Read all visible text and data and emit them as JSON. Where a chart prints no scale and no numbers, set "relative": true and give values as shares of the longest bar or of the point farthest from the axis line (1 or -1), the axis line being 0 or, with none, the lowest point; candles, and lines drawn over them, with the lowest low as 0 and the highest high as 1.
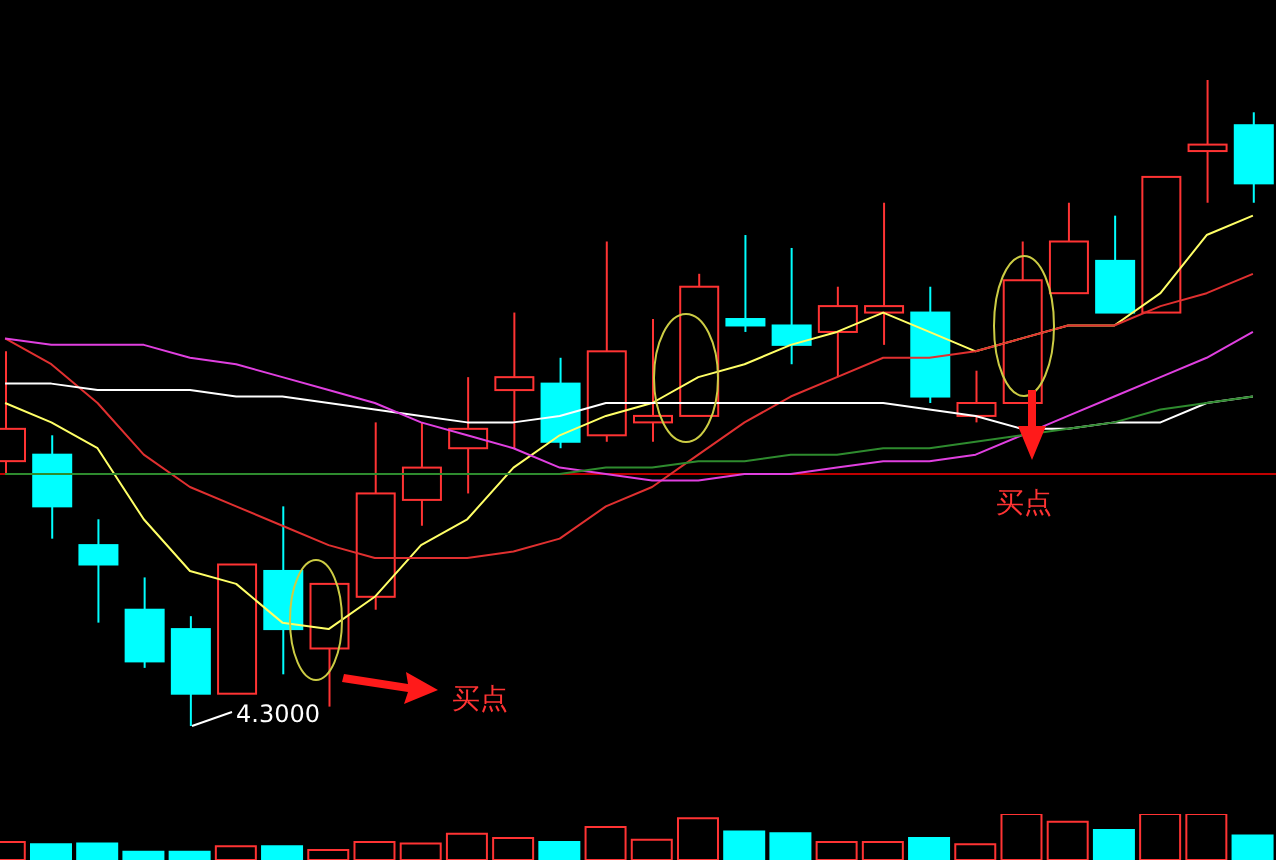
{
  "chart_data": [
    {
      "type": "candlestick",
      "relative": true,
      "categories": [
        null,
        null,
        null,
        null,
        null,
        null,
        null,
        null,
        null,
        null,
        null,
        null,
        null,
        null,
        null,
        null,
        null,
        null,
        null,
        null,
        null,
        null,
        null,
        null,
        null,
        null,
        null,
        null
      ],
      "ohlc": [
        [
          0.41,
          0.58,
          0.39,
          0.46
        ],
        [
          0.42,
          0.45,
          0.29,
          0.34
        ],
        [
          0.28,
          0.32,
          0.16,
          0.25
        ],
        [
          0.18,
          0.23,
          0.09,
          0.1
        ],
        [
          0.15,
          0.17,
          0,
          0.05
        ],
        [
          0.05,
          0.25,
          0.05,
          0.25
        ],
        [
          0.24,
          0.34,
          0.08,
          0.15
        ],
        [
          0.12,
          0.22,
          0.03,
          0.22
        ],
        [
          0.2,
          0.47,
          0.18,
          0.36
        ],
        [
          0.35,
          0.47,
          0.31,
          0.4
        ],
        [
          0.43,
          0.54,
          0.36,
          0.46
        ],
        [
          0.52,
          0.64,
          0.43,
          0.54
        ],
        [
          0.53,
          0.57,
          0.43,
          0.44
        ],
        [
          0.45,
          0.75,
          0.44,
          0.58
        ],
        [
          0.47,
          0.63,
          0.44,
          0.48
        ],
        [
          0.48,
          0.7,
          0.48,
          0.68
        ],
        [
          0.63,
          0.76,
          0.61,
          0.62
        ],
        [
          0.62,
          0.74,
          0.56,
          0.59
        ],
        [
          0.61,
          0.68,
          0.54,
          0.65
        ],
        [
          0.64,
          0.81,
          0.59,
          0.65
        ],
        [
          0.64,
          0.68,
          0.5,
          0.51
        ],
        [
          0.48,
          0.55,
          0.47,
          0.5
        ],
        [
          0.5,
          0.75,
          0.5,
          0.69
        ],
        [
          0.67,
          0.81,
          0.67,
          0.75
        ],
        [
          0.72,
          0.79,
          0.64,
          0.64
        ],
        [
          0.64,
          0.85,
          0.64,
          0.85
        ],
        [
          0.89,
          1,
          0.81,
          0.9
        ],
        [
          0.93,
          0.95,
          0.81,
          0.84
        ]
      ],
      "colors": [
        "#ff3333",
        "#00ffff",
        "#00ffff",
        "#00ffff",
        "#00ffff",
        "#ff3333",
        "#00ffff",
        "#ff3333",
        "#ff3333",
        "#ff3333",
        "#ff3333",
        "#ff3333",
        "#00ffff",
        "#ff3333",
        "#ff3333",
        "#ff3333",
        "#00ffff",
        "#00ffff",
        "#ff3333",
        "#ff3333",
        "#00ffff",
        "#ff3333",
        "#ff3333",
        "#ff3333",
        "#00ffff",
        "#ff3333",
        "#ff3333",
        "#00ffff"
      ],
      "series": [
        {
          "type": "line",
          "color": "#ffff66",
          "values": [
            0.5,
            0.47,
            0.43,
            0.32,
            0.24,
            0.22,
            0.16,
            0.15,
            0.2,
            0.28,
            0.32,
            0.4,
            0.45,
            0.48,
            0.5,
            0.54,
            0.56,
            0.59,
            0.61,
            0.64,
            0.61,
            0.58,
            0.6,
            0.62,
            0.62,
            0.67,
            0.76,
            0.79
          ]
        },
        {
          "type": "line",
          "color": "#e03030",
          "values": [
            0.6,
            0.56,
            0.5,
            0.42,
            0.37,
            0.34,
            0.31,
            0.28,
            0.26,
            0.26,
            0.26,
            0.27,
            0.29,
            0.34,
            0.37,
            0.42,
            0.47,
            0.51,
            0.54,
            0.57,
            0.57,
            0.58,
            0.6,
            0.62,
            0.62,
            0.65,
            0.67,
            0.7
          ]
        },
        {
          "type": "line",
          "color": "#ffffff",
          "values": [
            0.53,
            0.53,
            0.52,
            0.52,
            0.52,
            0.51,
            0.51,
            0.5,
            0.49,
            0.48,
            0.47,
            0.47,
            0.48,
            0.5,
            0.5,
            0.5,
            0.5,
            0.5,
            0.5,
            0.5,
            0.49,
            0.48,
            0.46,
            0.46,
            0.47,
            0.47,
            0.5,
            0.51
          ]
        },
        {
          "type": "line",
          "color": "#e040e0",
          "values": [
            0.6,
            0.59,
            0.59,
            0.59,
            0.57,
            0.56,
            0.54,
            0.52,
            0.5,
            0.47,
            0.45,
            0.43,
            0.4,
            0.39,
            0.38,
            0.38,
            0.39,
            0.39,
            0.4,
            0.41,
            0.41,
            0.42,
            0.45,
            0.48,
            0.51,
            0.54,
            0.57,
            0.61
          ]
        },
        {
          "type": "line",
          "color": "#2e8b2e",
          "values": [
            0.39,
            0.39,
            0.39,
            0.39,
            0.39,
            0.39,
            0.39,
            0.39,
            0.39,
            0.39,
            0.39,
            0.39,
            0.39,
            0.4,
            0.4,
            0.41,
            0.41,
            0.42,
            0.42,
            0.43,
            0.43,
            0.44,
            0.45,
            0.46,
            0.47,
            0.49,
            0.5,
            0.51
          ]
        }
      ],
      "ref_lines": [
        {
          "axis": "y",
          "value": 0.39,
          "color": "#c00000"
        }
      ],
      "annotations": [
        "4.3000",
        "买点",
        "买点"
      ]
    },
    {
      "type": "bar",
      "relative": true,
      "categories": [
        null,
        null,
        null,
        null,
        null,
        null,
        null,
        null,
        null,
        null,
        null,
        null,
        null,
        null,
        null,
        null,
        null,
        null,
        null,
        null,
        null,
        null,
        null,
        null,
        null,
        null,
        null,
        null
      ],
      "values": [
        0.39,
        0.34,
        0.36,
        0.18,
        0.18,
        0.3,
        0.3,
        0.22,
        0.39,
        0.36,
        0.57,
        0.48,
        0.39,
        0.72,
        0.44,
        0.91,
        0.62,
        0.58,
        0.39,
        0.39,
        0.48,
        0.34,
        1,
        0.83,
        0.65,
        1,
        1,
        0.53
      ],
      "colors": [
        "#ff3333",
        "#00ffff",
        "#00ffff",
        "#00ffff",
        "#00ffff",
        "#ff3333",
        "#00ffff",
        "#ff3333",
        "#ff3333",
        "#ff3333",
        "#ff3333",
        "#ff3333",
        "#00ffff",
        "#ff3333",
        "#ff3333",
        "#ff3333",
        "#00ffff",
        "#00ffff",
        "#ff3333",
        "#ff3333",
        "#00ffff",
        "#ff3333",
        "#ff3333",
        "#ff3333",
        "#00ffff",
        "#ff3333",
        "#ff3333",
        "#00ffff"
      ]
    }
  ]
}
